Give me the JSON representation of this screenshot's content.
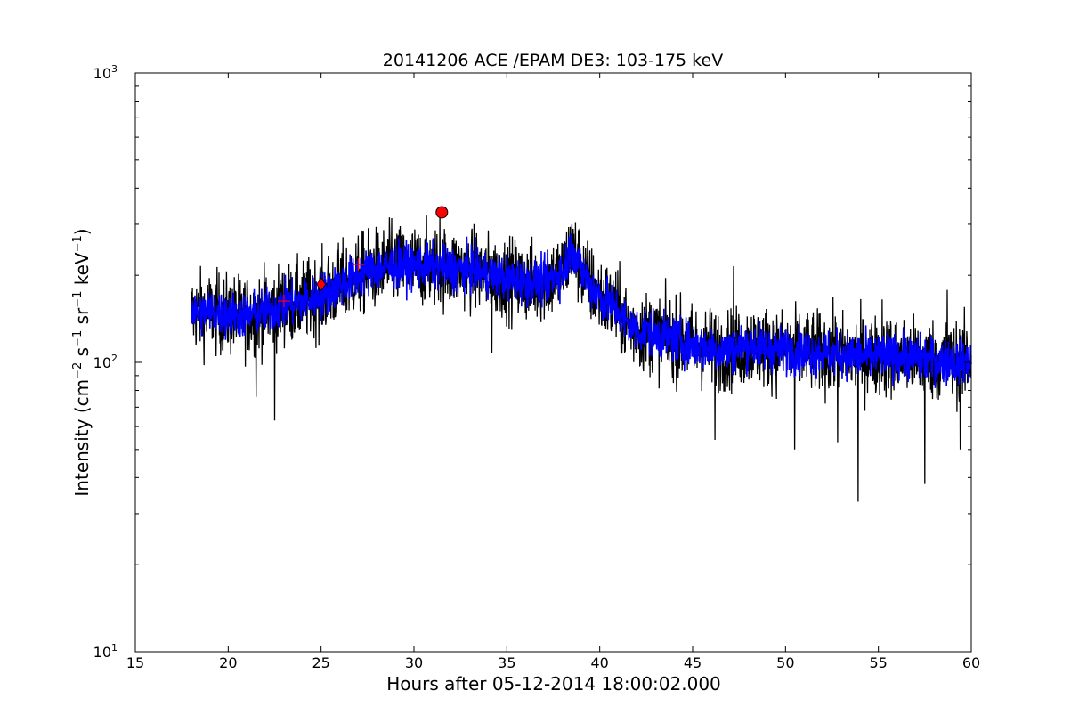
{
  "chart_data": {
    "type": "line",
    "title": "20141206 ACE /EPAM DE3: 103-175 keV",
    "xlabel": "Hours after 05-12-2014 18:00:02.000",
    "ylabel": {
      "prefix": "Intensity (cm",
      "sup1": "−2",
      "mid1": " s",
      "sup2": "−1",
      "mid2": " sr",
      "sup3": "−1",
      "mid3": " keV",
      "sup4": "−1",
      "suffix": ")"
    },
    "xlim": [
      15,
      60
    ],
    "ylim": [
      10,
      1000
    ],
    "yscale": "log",
    "x_ticks": [
      "15",
      "20",
      "25",
      "30",
      "35",
      "40",
      "45",
      "50",
      "55",
      "60"
    ],
    "y_ticks": [
      {
        "value": 10,
        "base": "10",
        "exp": "1"
      },
      {
        "value": 100,
        "base": "10",
        "exp": "2"
      },
      {
        "value": 1000,
        "base": "10",
        "exp": "3"
      }
    ],
    "grid": false,
    "legend": "none",
    "colors": {
      "raw": "#000000",
      "smoothed": "#0000ff",
      "markers": "#ff0000"
    },
    "series": [
      {
        "role": "raw",
        "color": "#000000",
        "x_start": 18.0,
        "x_end": 60.0,
        "profile_x": [
          18,
          19,
          20,
          21,
          22,
          23,
          24,
          25,
          26,
          27,
          28,
          29,
          30,
          31,
          32,
          33,
          34,
          35,
          36,
          37,
          37.5,
          38,
          38.5,
          39,
          39.5,
          40,
          41,
          41.5,
          42,
          43,
          44,
          45,
          46,
          47,
          48,
          50,
          52,
          54,
          56,
          58,
          60
        ],
        "profile_y": [
          148,
          150,
          145,
          145,
          150,
          158,
          162,
          170,
          185,
          200,
          210,
          215,
          215,
          215,
          210,
          210,
          200,
          195,
          190,
          190,
          198,
          205,
          250,
          210,
          185,
          170,
          150,
          135,
          130,
          125,
          120,
          115,
          112,
          110,
          115,
          110,
          108,
          105,
          105,
          102,
          100
        ],
        "spikes": [
          {
            "x": 22.5,
            "y": 63
          },
          {
            "x": 21.5,
            "y": 76
          },
          {
            "x": 28.8,
            "y": 315
          },
          {
            "x": 31.4,
            "y": 320
          },
          {
            "x": 34.2,
            "y": 108
          },
          {
            "x": 38.5,
            "y": 300
          },
          {
            "x": 47.2,
            "y": 215
          },
          {
            "x": 46.2,
            "y": 54
          },
          {
            "x": 50.5,
            "y": 50
          },
          {
            "x": 52.8,
            "y": 53
          },
          {
            "x": 53.9,
            "y": 33
          },
          {
            "x": 57.5,
            "y": 38
          },
          {
            "x": 59.4,
            "y": 50
          },
          {
            "x": 55.2,
            "y": 165
          },
          {
            "x": 58.7,
            "y": 178
          }
        ]
      },
      {
        "role": "smoothed",
        "color": "#0000ff",
        "x_start": 18.0,
        "x_end": 60.0
      }
    ],
    "markers": [
      {
        "shape": "circle",
        "x": 31.5,
        "y": 330,
        "color": "#ff0000"
      },
      {
        "shape": "diamond",
        "x": 25.0,
        "y": 186,
        "color": "#ff0000"
      },
      {
        "shape": "plus",
        "x": 23.0,
        "y": 163,
        "color": "#ff0000"
      },
      {
        "shape": "plus",
        "x": 27.0,
        "y": 218,
        "color": "#ff0000"
      }
    ]
  }
}
